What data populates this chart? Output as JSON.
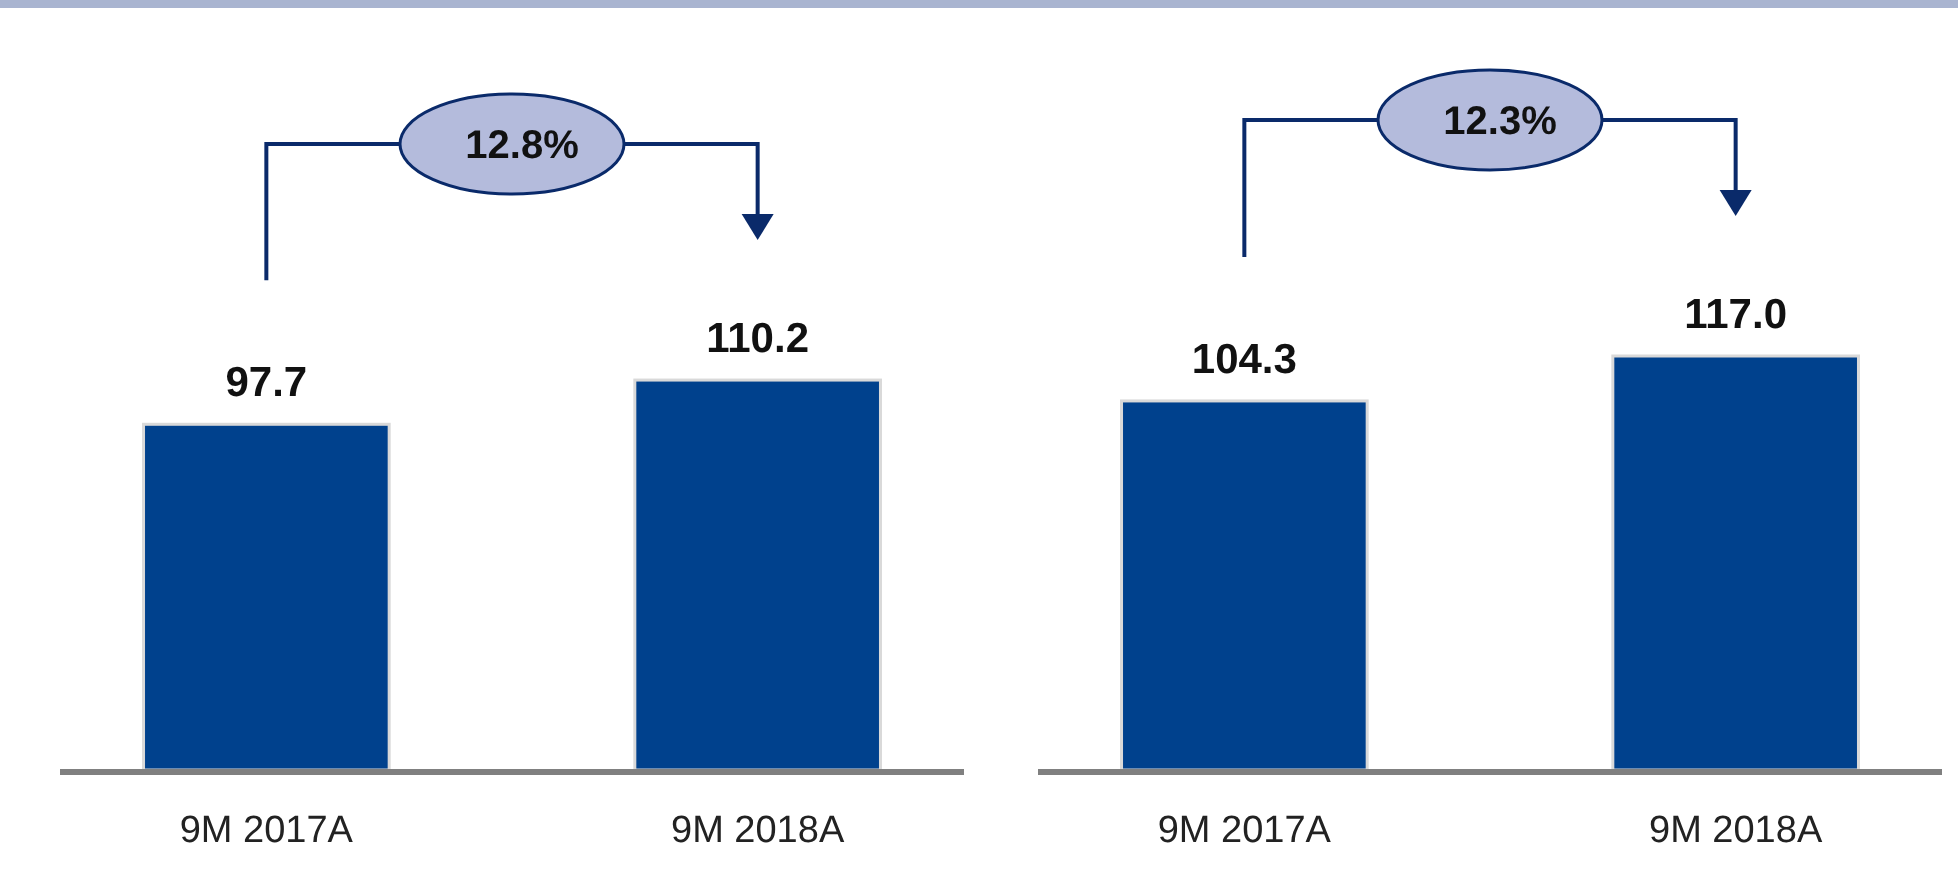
{
  "chart_data": [
    {
      "type": "bar",
      "categories": [
        "9M 2017A",
        "9M 2018A"
      ],
      "values": [
        97.7,
        110.2
      ],
      "value_labels": [
        "97.7",
        "110.2"
      ],
      "color": "#00418d",
      "annotations": [
        "12.8%"
      ]
    },
    {
      "type": "bar",
      "categories": [
        "9M 2017A",
        "9M 2018A"
      ],
      "values": [
        104.3,
        117.0
      ],
      "value_labels": [
        "104.3",
        "117.0"
      ],
      "color": "#00418d",
      "annotations": [
        "12.3%"
      ]
    }
  ]
}
